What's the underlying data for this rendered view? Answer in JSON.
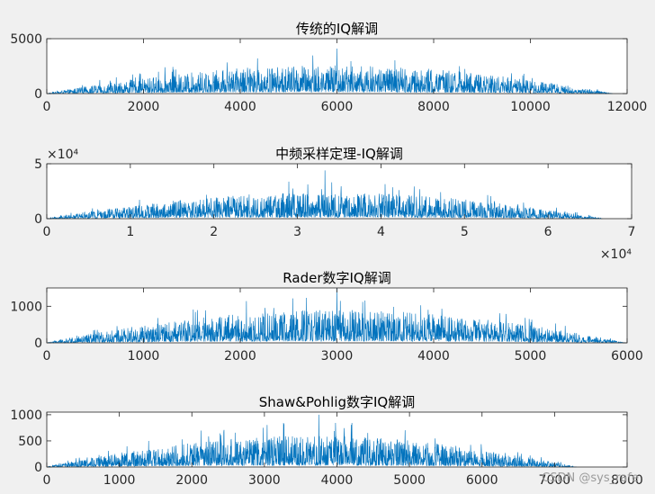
{
  "watermark": "CSDN @sys_rafe",
  "colors": {
    "series": "#0072BD",
    "axes_bg": "#ffffff",
    "figure_bg": "#f0f0f0",
    "text": "#262626"
  },
  "chart_data": [
    {
      "type": "line",
      "title": "传统的IQ解调",
      "xlim": [
        0,
        12000
      ],
      "ylim": [
        0,
        5000
      ],
      "xticks": [
        0,
        2000,
        4000,
        6000,
        8000,
        10000,
        12000
      ],
      "xtick_labels": [
        "0",
        "2000",
        "4000",
        "6000",
        "8000",
        "10000",
        "12000"
      ],
      "yticks": [
        0,
        5000
      ],
      "ytick_labels": [
        "0",
        "5000"
      ],
      "x_exponent_label": "",
      "y_exponent_label": "",
      "signal": {
        "n_points": 11700,
        "x_end": 11700,
        "envelope_peak": 2600,
        "spike_x": 6000,
        "spike_y": 4100
      }
    },
    {
      "type": "line",
      "title": "中频采样定理-IQ解调",
      "xlim": [
        0,
        7
      ],
      "ylim": [
        0,
        5
      ],
      "xticks": [
        0,
        1,
        2,
        3,
        4,
        5,
        6,
        7
      ],
      "xtick_labels": [
        "0",
        "1",
        "2",
        "3",
        "4",
        "5",
        "6",
        "7"
      ],
      "yticks": [
        0,
        5
      ],
      "ytick_labels": [
        "0",
        "5"
      ],
      "x_exponent_label": "×10⁴",
      "y_exponent_label": "×10⁴",
      "signal": {
        "n_points": 6650,
        "x_end": 6.65,
        "envelope_peak": 2.4,
        "spike_x": 3.33,
        "spike_y": 4.4
      }
    },
    {
      "type": "line",
      "title": "Rader数字IQ解调",
      "xlim": [
        0,
        6000
      ],
      "ylim": [
        0,
        1500
      ],
      "xticks": [
        0,
        1000,
        2000,
        3000,
        4000,
        5000,
        6000
      ],
      "xtick_labels": [
        "0",
        "1000",
        "2000",
        "3000",
        "4000",
        "5000",
        "6000"
      ],
      "yticks": [
        0,
        1000
      ],
      "ytick_labels": [
        "0",
        "1000"
      ],
      "x_exponent_label": "",
      "y_exponent_label": "",
      "signal": {
        "n_points": 5980,
        "x_end": 5980,
        "envelope_peak": 900,
        "spike_x": 3000,
        "spike_y": 1500
      }
    },
    {
      "type": "line",
      "title": "Shaw&Pohlig数字IQ解调",
      "xlim": [
        0,
        8000
      ],
      "ylim": [
        0,
        1050
      ],
      "xticks": [
        0,
        1000,
        2000,
        3000,
        4000,
        5000,
        6000,
        7000,
        8000
      ],
      "xtick_labels": [
        "0",
        "1000",
        "2000",
        "3000",
        "4000",
        "5000",
        "6000",
        "7000",
        "8000"
      ],
      "yticks": [
        0,
        500,
        1000
      ],
      "ytick_labels": [
        "0",
        "500",
        "1000"
      ],
      "x_exponent_label": "",
      "y_exponent_label": "",
      "signal": {
        "n_points": 7300,
        "x_end": 7300,
        "envelope_peak": 600,
        "spike_x": 3750,
        "spike_y": 1000
      }
    }
  ]
}
